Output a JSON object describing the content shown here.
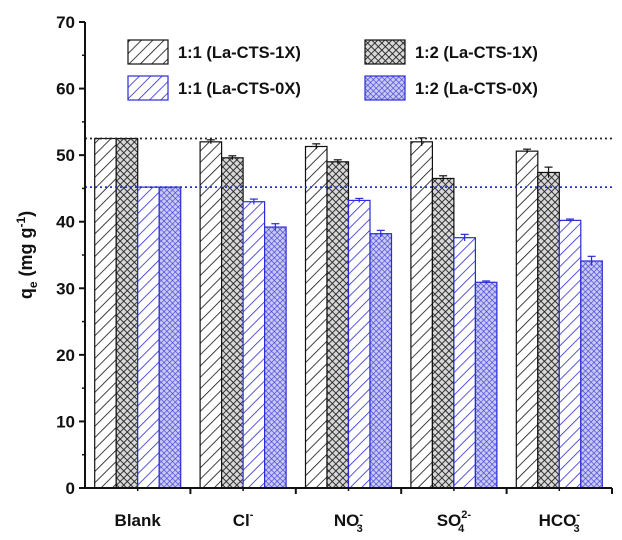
{
  "chart_data": {
    "type": "bar",
    "title": "",
    "xlabel": "",
    "ylabel": {
      "main": "q",
      "sub": "e",
      "units": " (mg g",
      "sup": "-1",
      "close": ")"
    },
    "ylim": [
      0,
      70
    ],
    "yticks": [
      0,
      10,
      20,
      30,
      40,
      50,
      60,
      70
    ],
    "categories": [
      {
        "base": "Blank",
        "sub": "",
        "sup": ""
      },
      {
        "base": "Cl",
        "sub": "",
        "sup": "-"
      },
      {
        "base": "NO",
        "sub": "3",
        "sup": "-"
      },
      {
        "base": "SO",
        "sub": "4",
        "sup": "2-"
      },
      {
        "base": "HCO",
        "sub": "3",
        "sup": "-"
      }
    ],
    "series": [
      {
        "name": "1:1 (La-CTS-1X)",
        "pattern": "hatch-black",
        "values": [
          52.5,
          52.0,
          51.3,
          52.0,
          50.6
        ],
        "errors": [
          0,
          0.3,
          0.4,
          0.6,
          0.3
        ]
      },
      {
        "name": "1:2 (La-CTS-1X)",
        "pattern": "check-black",
        "values": [
          52.5,
          49.6,
          49.0,
          46.5,
          47.4
        ],
        "errors": [
          0,
          0.3,
          0.3,
          0.4,
          0.8
        ]
      },
      {
        "name": "1:1 (La-CTS-0X)",
        "pattern": "hatch-blue",
        "values": [
          45.2,
          43.0,
          43.2,
          37.6,
          40.2
        ],
        "errors": [
          0,
          0.4,
          0.3,
          0.5,
          0.2
        ]
      },
      {
        "name": "1:2 (La-CTS-0X)",
        "pattern": "check-blue",
        "values": [
          45.2,
          39.2,
          38.2,
          30.9,
          34.1
        ],
        "errors": [
          0,
          0.5,
          0.5,
          0.2,
          0.7
        ]
      }
    ],
    "reference_lines": [
      {
        "value": 52.5,
        "color": "#222222",
        "style": "dotted"
      },
      {
        "value": 45.2,
        "color": "#2233cc",
        "style": "dotted"
      }
    ],
    "legend_position": "top",
    "grid": false,
    "colors": {
      "black_series": "#111111",
      "blue_series": "#2b2bd9"
    }
  }
}
